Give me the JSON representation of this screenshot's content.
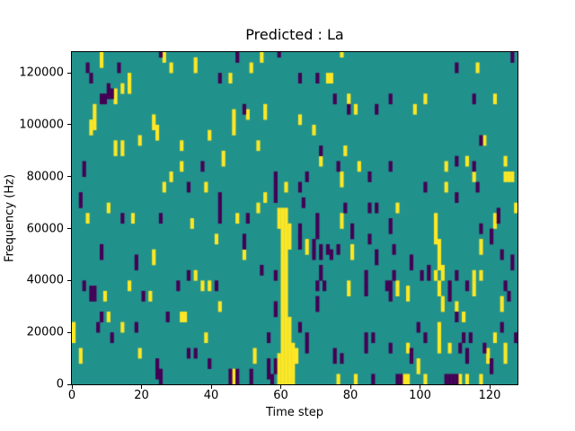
{
  "figure": {
    "title": "Predicted : La"
  },
  "chart_data": {
    "type": "heatmap",
    "title": "Predicted : La",
    "xlabel": "Time step",
    "ylabel": "Frequency (Hz)",
    "x_range": [
      0,
      128
    ],
    "y_range": [
      0,
      128000
    ],
    "grid_cols": 128,
    "grid_rows": 64,
    "row_height_hz": 2000,
    "x_ticks": [
      0,
      20,
      40,
      60,
      80,
      100,
      120
    ],
    "x_tick_labels": [
      "0",
      "20",
      "40",
      "60",
      "80",
      "100",
      "120"
    ],
    "y_ticks": [
      0,
      20000,
      40000,
      60000,
      80000,
      100000,
      120000
    ],
    "y_tick_labels": [
      "0",
      "20000",
      "40000",
      "60000",
      "80000",
      "100000",
      "120000"
    ],
    "legend": null,
    "grid": false,
    "colors": {
      "mid": "#21918c",
      "high": "#fde725",
      "low": "#440154"
    },
    "value_legend": {
      "mid": "background",
      "high": "active (yellow)",
      "low": "inactive (purple)"
    },
    "cells": [
      [
        8,
        61,
        63,
        "y"
      ],
      [
        26,
        62,
        63,
        "y"
      ],
      [
        35,
        60,
        62,
        "y"
      ],
      [
        54,
        62,
        63,
        "y"
      ],
      [
        28,
        60,
        61,
        "y"
      ],
      [
        51,
        60,
        61,
        "y"
      ],
      [
        45,
        58,
        59,
        "y"
      ],
      [
        16,
        56,
        59,
        "y"
      ],
      [
        14,
        56,
        57,
        "y"
      ],
      [
        12,
        54,
        56,
        "y"
      ],
      [
        6,
        49,
        53,
        "y"
      ],
      [
        55,
        51,
        53,
        "y"
      ],
      [
        50,
        51,
        52,
        "y"
      ],
      [
        23,
        49,
        51,
        "y"
      ],
      [
        46,
        48,
        52,
        "y"
      ],
      [
        5,
        48,
        50,
        "y"
      ],
      [
        24,
        47,
        49,
        "y"
      ],
      [
        39,
        47,
        48,
        "y"
      ],
      [
        19,
        46,
        47,
        "y"
      ],
      [
        14,
        44,
        46,
        "y"
      ],
      [
        12,
        44,
        46,
        "y"
      ],
      [
        31,
        45,
        46,
        "y"
      ],
      [
        53,
        45,
        46,
        "y"
      ],
      [
        43,
        42,
        44,
        "y"
      ],
      [
        77,
        63,
        63,
        "y"
      ],
      [
        4,
        60,
        61,
        "p"
      ],
      [
        13,
        60,
        61,
        "p"
      ],
      [
        25,
        63,
        63,
        "p"
      ],
      [
        47,
        62,
        63,
        "p"
      ],
      [
        5,
        58,
        59,
        "p"
      ],
      [
        10,
        55,
        57,
        "p"
      ],
      [
        11,
        55,
        56,
        "p"
      ],
      [
        8,
        54,
        55,
        "p"
      ],
      [
        9,
        54,
        55,
        "p"
      ],
      [
        42,
        58,
        59,
        "p"
      ],
      [
        49,
        52,
        53,
        "p"
      ],
      [
        59,
        63,
        63,
        "p"
      ],
      [
        31,
        41,
        42,
        "y"
      ],
      [
        28,
        39,
        40,
        "y"
      ],
      [
        26,
        37,
        38,
        "y"
      ],
      [
        38,
        37,
        38,
        "y"
      ],
      [
        10,
        33,
        34,
        "y"
      ],
      [
        4,
        31,
        32,
        "y"
      ],
      [
        17,
        31,
        32,
        "y"
      ],
      [
        47,
        31,
        32,
        "y"
      ],
      [
        34,
        30,
        31,
        "y"
      ],
      [
        53,
        33,
        34,
        "y"
      ],
      [
        55,
        35,
        36,
        "y"
      ],
      [
        41,
        27,
        28,
        "y"
      ],
      [
        23,
        23,
        25,
        "y"
      ],
      [
        49,
        24,
        25,
        "y"
      ],
      [
        61,
        37,
        38,
        "y"
      ],
      [
        3,
        40,
        42,
        "p"
      ],
      [
        37,
        41,
        42,
        "p"
      ],
      [
        33,
        37,
        38,
        "p"
      ],
      [
        2,
        34,
        36,
        "p"
      ],
      [
        14,
        31,
        32,
        "p"
      ],
      [
        25,
        31,
        32,
        "p"
      ],
      [
        42,
        31,
        36,
        "p"
      ],
      [
        50,
        31,
        32,
        "p"
      ],
      [
        49,
        26,
        28,
        "p"
      ],
      [
        8,
        24,
        26,
        "p"
      ],
      [
        18,
        22,
        24,
        "p"
      ],
      [
        54,
        21,
        22,
        "p"
      ],
      [
        58,
        35,
        40,
        "p"
      ],
      [
        66,
        34,
        35,
        "p"
      ],
      [
        35,
        20,
        21,
        "y"
      ],
      [
        16,
        18,
        19,
        "y"
      ],
      [
        37,
        18,
        19,
        "y"
      ],
      [
        39,
        18,
        19,
        "y"
      ],
      [
        9,
        16,
        17,
        "y"
      ],
      [
        22,
        16,
        17,
        "y"
      ],
      [
        42,
        14,
        15,
        "y"
      ],
      [
        31,
        12,
        13,
        "y"
      ],
      [
        32,
        12,
        13,
        "y"
      ],
      [
        10,
        12,
        13,
        "y"
      ],
      [
        0,
        8,
        11,
        "y"
      ],
      [
        14,
        10,
        11,
        "y"
      ],
      [
        38,
        8,
        9,
        "y"
      ],
      [
        2,
        4,
        6,
        "y"
      ],
      [
        19,
        5,
        6,
        "y"
      ],
      [
        52,
        4,
        6,
        "y"
      ],
      [
        46,
        0,
        2,
        "y"
      ],
      [
        3,
        18,
        19,
        "p"
      ],
      [
        5,
        16,
        18,
        "p"
      ],
      [
        6,
        16,
        18,
        "p"
      ],
      [
        20,
        16,
        17,
        "p"
      ],
      [
        8,
        12,
        13,
        "p"
      ],
      [
        7,
        10,
        11,
        "p"
      ],
      [
        11,
        8,
        9,
        "p"
      ],
      [
        18,
        10,
        11,
        "p"
      ],
      [
        27,
        12,
        13,
        "p"
      ],
      [
        30,
        18,
        19,
        "p"
      ],
      [
        33,
        20,
        21,
        "p"
      ],
      [
        41,
        18,
        19,
        "p"
      ],
      [
        33,
        5,
        6,
        "p"
      ],
      [
        35,
        5,
        6,
        "p"
      ],
      [
        24,
        3,
        4,
        "p"
      ],
      [
        24,
        1,
        2,
        "p"
      ],
      [
        25,
        0,
        2,
        "p"
      ],
      [
        39,
        3,
        4,
        "p"
      ],
      [
        45,
        0,
        2,
        "p"
      ],
      [
        47,
        0,
        2,
        "p"
      ],
      [
        51,
        0,
        2,
        "p"
      ],
      [
        56,
        8,
        9,
        "p"
      ],
      [
        56,
        1,
        4,
        "p"
      ],
      [
        57,
        0,
        1,
        "p"
      ],
      [
        58,
        2,
        4,
        "p"
      ],
      [
        58,
        13,
        15,
        "p"
      ],
      [
        58,
        20,
        21,
        "p"
      ],
      [
        59,
        30,
        33,
        "y"
      ],
      [
        59,
        0,
        5,
        "y"
      ],
      [
        60,
        0,
        33,
        "y"
      ],
      [
        61,
        0,
        33,
        "y"
      ],
      [
        62,
        0,
        12,
        "y"
      ],
      [
        62,
        26,
        30,
        "y"
      ],
      [
        63,
        0,
        7,
        "y"
      ],
      [
        73,
        58,
        59,
        "y"
      ],
      [
        74,
        58,
        59,
        "y"
      ],
      [
        116,
        60,
        61,
        "y"
      ],
      [
        101,
        54,
        55,
        "y"
      ],
      [
        79,
        54,
        55,
        "y"
      ],
      [
        81,
        52,
        53,
        "y"
      ],
      [
        98,
        52,
        53,
        "y"
      ],
      [
        121,
        54,
        55,
        "y"
      ],
      [
        65,
        50,
        51,
        "y"
      ],
      [
        69,
        48,
        49,
        "y"
      ],
      [
        78,
        44,
        45,
        "y"
      ],
      [
        71,
        42,
        43,
        "y"
      ],
      [
        113,
        42,
        43,
        "y"
      ],
      [
        124,
        42,
        43,
        "y"
      ],
      [
        118,
        46,
        47,
        "y"
      ],
      [
        65,
        58,
        59,
        "p"
      ],
      [
        70,
        58,
        59,
        "p"
      ],
      [
        75,
        54,
        55,
        "p"
      ],
      [
        79,
        52,
        53,
        "p"
      ],
      [
        87,
        52,
        53,
        "p"
      ],
      [
        91,
        54,
        55,
        "p"
      ],
      [
        71,
        44,
        45,
        "p"
      ],
      [
        110,
        60,
        61,
        "p"
      ],
      [
        115,
        54,
        55,
        "p"
      ],
      [
        117,
        46,
        47,
        "p"
      ],
      [
        110,
        42,
        43,
        "p"
      ],
      [
        126,
        62,
        63,
        "p"
      ],
      [
        82,
        41,
        42,
        "y"
      ],
      [
        77,
        38,
        40,
        "y"
      ],
      [
        107,
        41,
        42,
        "y"
      ],
      [
        115,
        39,
        40,
        "y"
      ],
      [
        107,
        37,
        38,
        "y"
      ],
      [
        77,
        30,
        32,
        "y"
      ],
      [
        93,
        33,
        34,
        "y"
      ],
      [
        104,
        27,
        32,
        "y"
      ],
      [
        105,
        22,
        27,
        "y"
      ],
      [
        106,
        20,
        22,
        "y"
      ],
      [
        67,
        25,
        27,
        "y"
      ],
      [
        80,
        24,
        26,
        "y"
      ],
      [
        117,
        25,
        27,
        "y"
      ],
      [
        121,
        30,
        32,
        "y"
      ],
      [
        124,
        39,
        40,
        "y"
      ],
      [
        125,
        39,
        40,
        "y"
      ],
      [
        126,
        39,
        40,
        "y"
      ],
      [
        127,
        33,
        34,
        "y"
      ],
      [
        76,
        41,
        42,
        "p"
      ],
      [
        91,
        41,
        42,
        "p"
      ],
      [
        115,
        41,
        42,
        "p"
      ],
      [
        85,
        39,
        40,
        "p"
      ],
      [
        65,
        37,
        38,
        "p"
      ],
      [
        67,
        39,
        40,
        "p"
      ],
      [
        101,
        37,
        38,
        "p"
      ],
      [
        116,
        37,
        38,
        "p"
      ],
      [
        110,
        35,
        36,
        "p"
      ],
      [
        85,
        33,
        34,
        "p"
      ],
      [
        87,
        33,
        34,
        "p"
      ],
      [
        78,
        33,
        34,
        "p"
      ],
      [
        70,
        28,
        32,
        "p"
      ],
      [
        65,
        28,
        30,
        "p"
      ],
      [
        91,
        29,
        31,
        "p"
      ],
      [
        80,
        28,
        30,
        "p"
      ],
      [
        85,
        27,
        28,
        "p"
      ],
      [
        65,
        26,
        28,
        "p"
      ],
      [
        69,
        24,
        27,
        "p"
      ],
      [
        71,
        24,
        26,
        "p"
      ],
      [
        73,
        25,
        26,
        "p"
      ],
      [
        74,
        24,
        25,
        "p"
      ],
      [
        76,
        25,
        26,
        "p"
      ],
      [
        92,
        25,
        26,
        "p"
      ],
      [
        87,
        23,
        25,
        "p"
      ],
      [
        97,
        22,
        24,
        "p"
      ],
      [
        102,
        20,
        22,
        "p"
      ],
      [
        117,
        29,
        30,
        "p"
      ],
      [
        120,
        27,
        29,
        "p"
      ],
      [
        122,
        31,
        33,
        "p"
      ],
      [
        123,
        24,
        25,
        "p"
      ],
      [
        126,
        22,
        24,
        "p"
      ],
      [
        71,
        20,
        22,
        "p"
      ],
      [
        104,
        20,
        21,
        "y"
      ],
      [
        105,
        17,
        19,
        "y"
      ],
      [
        115,
        20,
        21,
        "y"
      ],
      [
        117,
        20,
        21,
        "y"
      ],
      [
        79,
        17,
        19,
        "y"
      ],
      [
        93,
        17,
        19,
        "y"
      ],
      [
        96,
        16,
        18,
        "y"
      ],
      [
        106,
        14,
        16,
        "y"
      ],
      [
        110,
        14,
        15,
        "y"
      ],
      [
        112,
        12,
        13,
        "y"
      ],
      [
        115,
        17,
        19,
        "y"
      ],
      [
        123,
        14,
        16,
        "y"
      ],
      [
        105,
        6,
        11,
        "y"
      ],
      [
        108,
        6,
        7,
        "y"
      ],
      [
        64,
        4,
        6,
        "y"
      ],
      [
        96,
        6,
        7,
        "y"
      ],
      [
        99,
        2,
        4,
        "y"
      ],
      [
        119,
        4,
        6,
        "y"
      ],
      [
        121,
        8,
        9,
        "y"
      ],
      [
        124,
        4,
        7,
        "y"
      ],
      [
        76,
        0,
        1,
        "y"
      ],
      [
        81,
        0,
        1,
        "y"
      ],
      [
        95,
        0,
        1,
        "y"
      ],
      [
        96,
        0,
        1,
        "y"
      ],
      [
        101,
        0,
        1,
        "y"
      ],
      [
        111,
        0,
        1,
        "y"
      ],
      [
        113,
        0,
        1,
        "y"
      ],
      [
        117,
        0,
        1,
        "y"
      ],
      [
        84,
        20,
        21,
        "p"
      ],
      [
        92,
        20,
        21,
        "p"
      ],
      [
        100,
        20,
        21,
        "p"
      ],
      [
        110,
        20,
        21,
        "p"
      ],
      [
        84,
        17,
        19,
        "p"
      ],
      [
        90,
        18,
        19,
        "p"
      ],
      [
        91,
        16,
        19,
        "p"
      ],
      [
        108,
        16,
        19,
        "p"
      ],
      [
        113,
        18,
        19,
        "p"
      ],
      [
        124,
        18,
        19,
        "p"
      ],
      [
        125,
        16,
        17,
        "p"
      ],
      [
        70,
        18,
        19,
        "p"
      ],
      [
        72,
        18,
        19,
        "p"
      ],
      [
        70,
        14,
        16,
        "p"
      ],
      [
        110,
        12,
        13,
        "p"
      ],
      [
        65,
        10,
        11,
        "p"
      ],
      [
        67,
        8,
        9,
        "p"
      ],
      [
        67,
        6,
        7,
        "p"
      ],
      [
        75,
        4,
        6,
        "p"
      ],
      [
        77,
        4,
        5,
        "p"
      ],
      [
        84,
        6,
        9,
        "p"
      ],
      [
        86,
        8,
        9,
        "p"
      ],
      [
        91,
        6,
        7,
        "p"
      ],
      [
        97,
        4,
        6,
        "p"
      ],
      [
        99,
        10,
        11,
        "p"
      ],
      [
        101,
        8,
        9,
        "p"
      ],
      [
        111,
        6,
        7,
        "p"
      ],
      [
        112,
        8,
        9,
        "p"
      ],
      [
        114,
        8,
        9,
        "p"
      ],
      [
        113,
        4,
        6,
        "p"
      ],
      [
        118,
        6,
        7,
        "p"
      ],
      [
        123,
        10,
        11,
        "p"
      ],
      [
        120,
        2,
        4,
        "p"
      ],
      [
        127,
        8,
        9,
        "p"
      ],
      [
        86,
        0,
        1,
        "p"
      ],
      [
        93,
        0,
        1,
        "p"
      ],
      [
        94,
        0,
        1,
        "p"
      ],
      [
        107,
        0,
        1,
        "p"
      ],
      [
        108,
        0,
        1,
        "p"
      ],
      [
        109,
        0,
        1,
        "p"
      ],
      [
        110,
        0,
        1,
        "p"
      ]
    ]
  }
}
